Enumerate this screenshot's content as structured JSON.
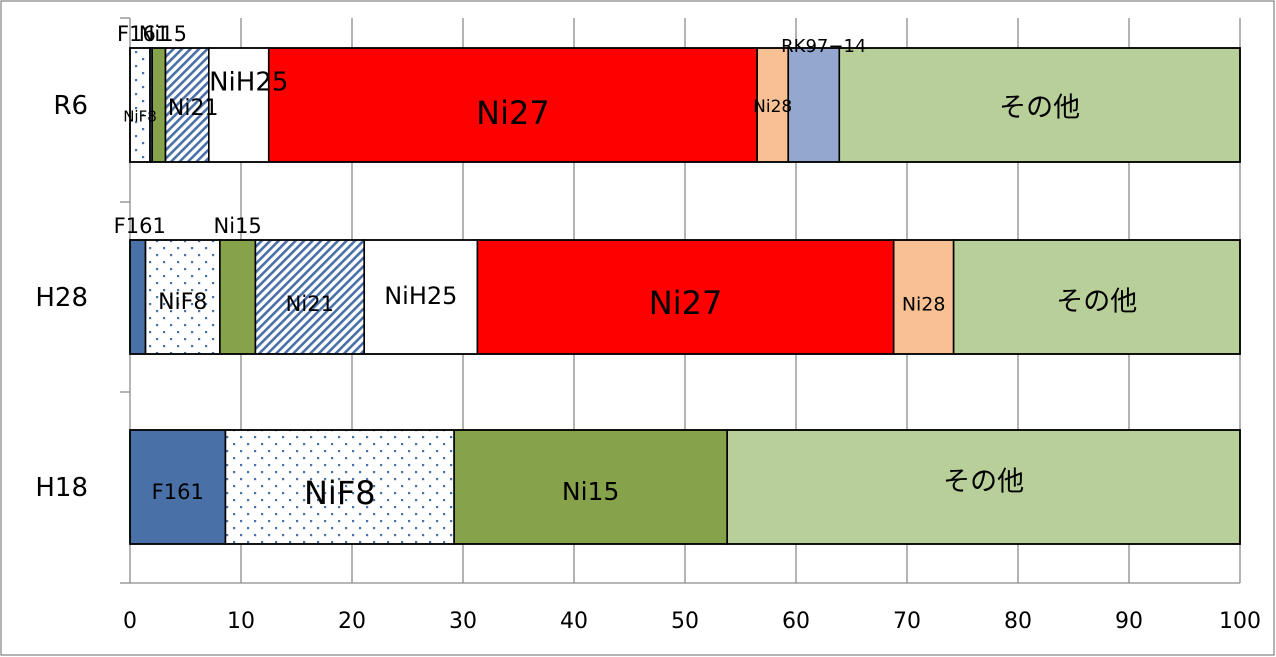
{
  "chart_data": {
    "type": "bar",
    "orientation": "horizontal",
    "stacked": true,
    "title": "",
    "xlabel": "",
    "ylabel": "",
    "xlim": [
      0,
      100
    ],
    "xticks": [
      0,
      10,
      20,
      30,
      40,
      50,
      60,
      70,
      80,
      90,
      100
    ],
    "grid": true,
    "legend": "none",
    "categories": [
      "R6",
      "H28",
      "H18"
    ],
    "bars": [
      {
        "category": "R6",
        "segments": [
          {
            "name": "NiF8",
            "label": "NiF8",
            "value": 1.8,
            "fill": "dots"
          },
          {
            "name": "F161",
            "label": "F161",
            "value": 0.2,
            "fill": "#4a70a8"
          },
          {
            "name": "Ni15",
            "label": "Ni15",
            "value": 1.2,
            "fill": "#86a34c"
          },
          {
            "name": "Ni21",
            "label": "Ni21",
            "value": 3.9,
            "fill": "hatch"
          },
          {
            "name": "NiH25",
            "label": "NiH25",
            "value": 5.4,
            "fill": "#ffffff"
          },
          {
            "name": "Ni27",
            "label": "Ni27",
            "value": 44.0,
            "fill": "#ff0000"
          },
          {
            "name": "Ni28",
            "label": "Ni28",
            "value": 2.8,
            "fill": "#f9c193"
          },
          {
            "name": "RK97−14",
            "label": "RK97−14",
            "value": 4.6,
            "fill": "#93a7cf"
          },
          {
            "name": "その他",
            "label": "その他",
            "value": 36.1,
            "fill": "#b9cf99"
          }
        ]
      },
      {
        "category": "H28",
        "segments": [
          {
            "name": "F161",
            "label": "F161",
            "value": 1.4,
            "fill": "#4a70a8"
          },
          {
            "name": "NiF8",
            "label": "NiF8",
            "value": 6.7,
            "fill": "dots"
          },
          {
            "name": "Ni15",
            "label": "Ni15",
            "value": 3.2,
            "fill": "#86a34c"
          },
          {
            "name": "Ni21",
            "label": "Ni21",
            "value": 9.8,
            "fill": "hatch"
          },
          {
            "name": "NiH25",
            "label": "NiH25",
            "value": 10.2,
            "fill": "#ffffff"
          },
          {
            "name": "Ni27",
            "label": "Ni27",
            "value": 37.5,
            "fill": "#ff0000"
          },
          {
            "name": "Ni28",
            "label": "Ni28",
            "value": 5.4,
            "fill": "#f9c193"
          },
          {
            "name": "その他",
            "label": "その他",
            "value": 25.8,
            "fill": "#b9cf99"
          }
        ]
      },
      {
        "category": "H18",
        "segments": [
          {
            "name": "F161",
            "label": "F161",
            "value": 8.6,
            "fill": "#4a70a8"
          },
          {
            "name": "NiF8",
            "label": "NiF8",
            "value": 20.6,
            "fill": "dots"
          },
          {
            "name": "Ni15",
            "label": "Ni15",
            "value": 24.6,
            "fill": "#86a34c"
          },
          {
            "name": "その他",
            "label": "その他",
            "value": 46.2,
            "fill": "#b9cf99"
          }
        ]
      }
    ]
  }
}
